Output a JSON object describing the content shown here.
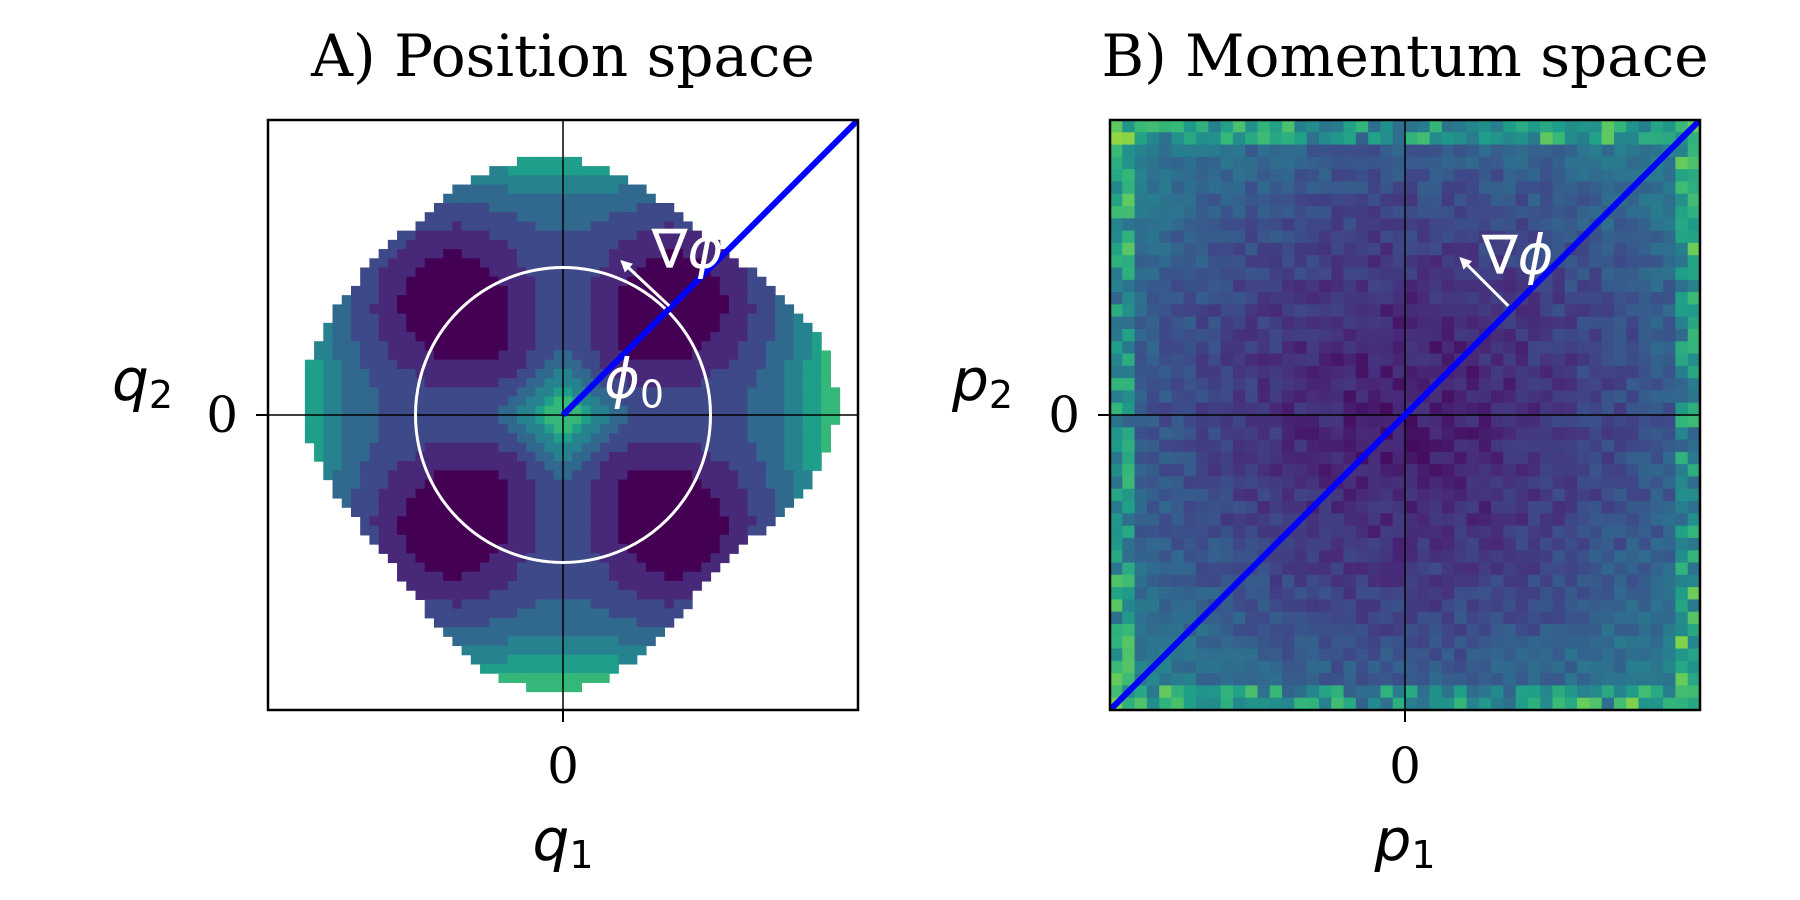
{
  "chart_data": [
    {
      "panel": "A",
      "type": "heatmap",
      "style": "filled-contour",
      "title": "A) Position space",
      "xlabel": "q",
      "xlabel_sub": "1",
      "ylabel": "q",
      "ylabel_sub": "2",
      "xticks": [
        "0"
      ],
      "yticks": [
        "0"
      ],
      "xlim": [
        -1,
        1
      ],
      "ylim": [
        -1,
        1
      ],
      "colormap": "viridis",
      "contour_levels": [
        0,
        1,
        2,
        3,
        4,
        5,
        6,
        7,
        8
      ],
      "level_colors": [
        "#440154",
        "#482878",
        "#3e4989",
        "#31688e",
        "#26828e",
        "#1f9e89",
        "#35b779",
        "#6ece58",
        "#b5de2b"
      ],
      "circle_radius": 0.5,
      "line": {
        "from": [
          0,
          0
        ],
        "to": [
          1,
          1
        ],
        "color": "#0000ff"
      },
      "annotations": [
        {
          "text": "∇ϕ",
          "x": 0.3,
          "y": 0.5
        },
        {
          "text": "ϕ",
          "sub": "0",
          "x": 0.14,
          "y": 0.06
        }
      ],
      "arrow": {
        "from": [
          0.36,
          0.37
        ],
        "to": [
          0.2,
          0.52
        ]
      }
    },
    {
      "panel": "B",
      "type": "heatmap",
      "style": "noisy-field",
      "title": "B) Momentum space",
      "xlabel": "p",
      "xlabel_sub": "1",
      "ylabel": "p",
      "ylabel_sub": "2",
      "xticks": [
        "0"
      ],
      "yticks": [
        "0"
      ],
      "xlim": [
        -1,
        1
      ],
      "ylim": [
        -1,
        1
      ],
      "colormap": "viridis",
      "line": {
        "from": [
          -1,
          -1
        ],
        "to": [
          1,
          1
        ],
        "color": "#0000ff"
      },
      "annotations": [
        {
          "text": "∇ϕ",
          "x": 0.26,
          "y": 0.48
        }
      ],
      "arrow": {
        "from": [
          0.35,
          0.37
        ],
        "to": [
          0.19,
          0.53
        ]
      }
    }
  ]
}
